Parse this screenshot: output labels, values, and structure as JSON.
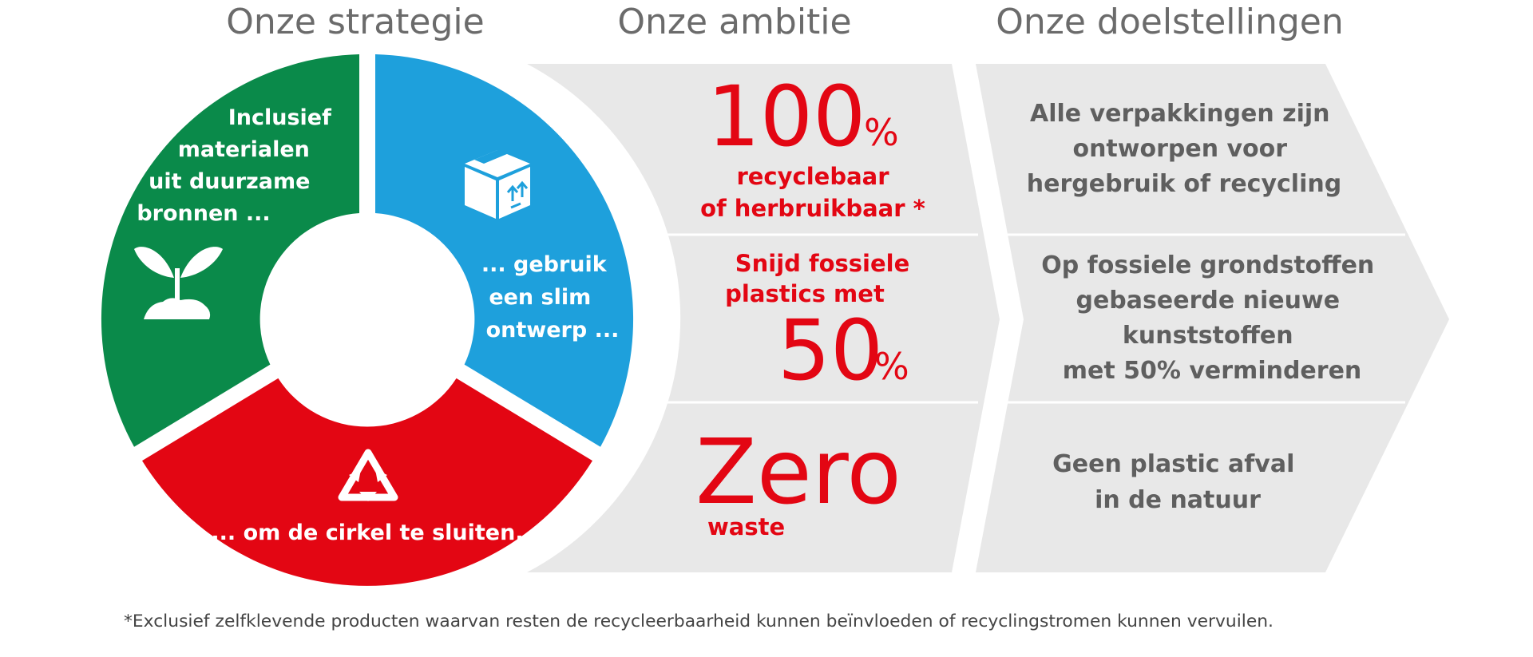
{
  "headers": {
    "strategy": "Onze strategie",
    "ambition": "Onze ambitie",
    "goals": "Onze doelstellingen"
  },
  "colors": {
    "green": "#0a8a4a",
    "blue": "#1ea0dc",
    "red": "#e30613",
    "panel": "#e8e8e8",
    "text_grey": "#5f5f5f"
  },
  "strategy": {
    "green_lines": [
      "Inclusief",
      "materialen",
      "uit duurzame",
      "bronnen ..."
    ],
    "blue_lines": [
      "... gebruik",
      "een slim",
      "ontwerp ..."
    ],
    "red_line": "... om de cirkel te sluiten.",
    "icons": [
      "plant-sprout-icon",
      "box-package-icon",
      "recycle-icon"
    ]
  },
  "ambition": {
    "row1": {
      "big": "100",
      "unit": "%",
      "lines": [
        "recyclebaar",
        "of herbruikbaar *"
      ]
    },
    "row2": {
      "lines": [
        "Snijd fossiele",
        "plastics met"
      ],
      "big": "50",
      "unit": "%"
    },
    "row3": {
      "big": "Zero",
      "small": "waste"
    }
  },
  "goals": {
    "row1": [
      "Alle verpakkingen zijn",
      "ontworpen voor",
      "hergebruik of recycling"
    ],
    "row2": [
      "Op fossiele grondstoffen",
      "gebaseerde nieuwe",
      "kunststoffen",
      "met 50% verminderen"
    ],
    "row3": [
      "Geen plastic afval",
      "in de natuur"
    ]
  },
  "footnote": "*Exclusief zelfklevende producten waarvan resten de recycleerbaarheid kunnen beïnvloeden of recyclingstromen kunnen vervuilen."
}
